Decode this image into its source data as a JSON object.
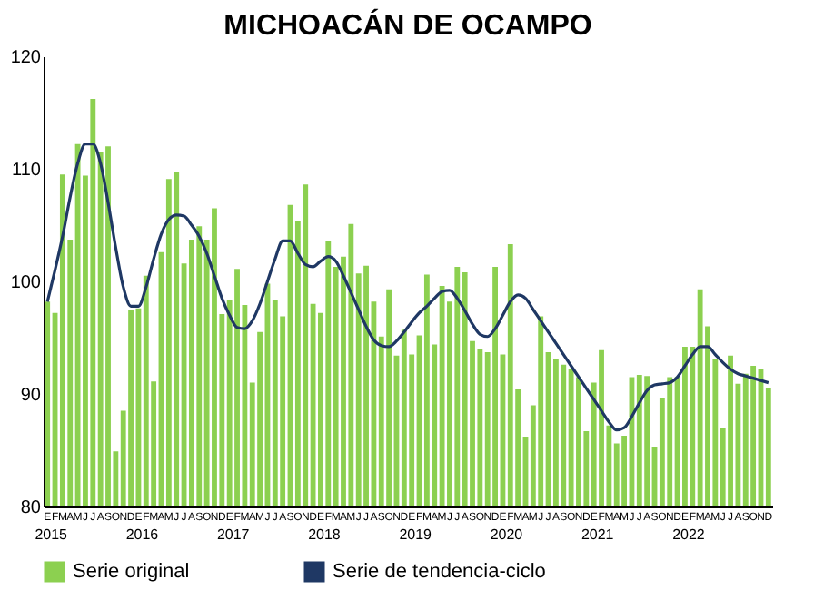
{
  "chart_data": {
    "type": "bar",
    "title": "MICHOACÁN DE OCAMPO",
    "categories": [
      "E",
      "F",
      "M",
      "A",
      "M",
      "J",
      "J",
      "A",
      "S",
      "O",
      "N",
      "D",
      "E",
      "F",
      "M",
      "A",
      "M",
      "J",
      "J",
      "A",
      "S",
      "O",
      "N",
      "D",
      "E",
      "F",
      "M",
      "A",
      "M",
      "J",
      "J",
      "A",
      "S",
      "O",
      "N",
      "D",
      "E",
      "F",
      "M",
      "A",
      "M",
      "J",
      "J",
      "A",
      "S",
      "O",
      "N",
      "D",
      "E",
      "F",
      "M",
      "A",
      "M",
      "J",
      "J",
      "A",
      "S",
      "O",
      "N",
      "D",
      "E",
      "F",
      "M",
      "A",
      "M",
      "J",
      "J",
      "A",
      "S",
      "O",
      "N",
      "D",
      "E",
      "F",
      "M",
      "A",
      "M",
      "J",
      "J",
      "A",
      "S",
      "O",
      "N",
      "D",
      "E",
      "F",
      "M",
      "A",
      "M",
      "J",
      "J",
      "A",
      "S",
      "O",
      "N",
      "D"
    ],
    "annotations": [
      "2015",
      "2016",
      "2017",
      "2018",
      "2019",
      "2020",
      "2021",
      "2022"
    ],
    "series": [
      {
        "name": "Serie original",
        "type": "bar",
        "color": "#8cd050",
        "values": [
          98.2,
          97.2,
          109.5,
          103.7,
          112.2,
          109.4,
          116.2,
          111.5,
          112.0,
          84.9,
          88.5,
          97.5,
          97.6,
          100.5,
          91.1,
          102.6,
          109.1,
          109.7,
          101.6,
          103.7,
          104.9,
          103.7,
          106.5,
          97.1,
          98.3,
          101.1,
          97.9,
          91.0,
          95.5,
          99.8,
          98.3,
          96.9,
          106.8,
          105.4,
          108.6,
          98.0,
          97.2,
          103.6,
          101.3,
          102.2,
          105.1,
          100.7,
          101.4,
          98.2,
          95.1,
          99.3,
          93.4,
          95.7,
          93.5,
          95.2,
          100.6,
          94.4,
          99.6,
          98.2,
          101.3,
          100.8,
          94.7,
          94.0,
          93.7,
          101.3,
          93.5,
          103.3,
          90.4,
          86.2,
          89.0,
          96.9,
          93.7,
          93.1,
          92.6,
          92.2,
          91.5,
          86.7,
          91.0,
          93.9,
          87.2,
          85.6,
          86.3,
          91.5,
          91.7,
          91.6,
          85.3,
          89.6,
          91.5,
          91.5,
          94.2,
          94.2,
          99.3,
          96.0,
          93.1,
          87.0,
          93.4,
          90.9,
          91.8,
          92.5,
          92.2,
          90.5
        ]
      },
      {
        "name": "Serie de tendencia-ciclo",
        "type": "line",
        "color": "#1f3864",
        "values": [
          98.2,
          101,
          104,
          107.5,
          110.5,
          112.2,
          112.2,
          110.5,
          107,
          103,
          99.5,
          97.8,
          97.8,
          99.5,
          102,
          104.2,
          105.5,
          105.9,
          105.8,
          105,
          104,
          102.5,
          100.5,
          98.5,
          97,
          95.9,
          95.8,
          96.5,
          98,
          100,
          102,
          103.6,
          103.6,
          102.5,
          101.5,
          101.3,
          101.8,
          102.2,
          101.8,
          100.5,
          99,
          97.5,
          96,
          94.8,
          94.3,
          94.2,
          94.7,
          95.5,
          96.4,
          97.2,
          97.8,
          98.5,
          99.1,
          99.2,
          98.5,
          97.4,
          96.2,
          95.3,
          95.1,
          95.8,
          97,
          98.2,
          98.8,
          98.5,
          97.5,
          96.5,
          95.5,
          94.5,
          93.5,
          92.5,
          91.5,
          90.5,
          89.5,
          88.5,
          87.5,
          86.8,
          87,
          88,
          89.2,
          90.3,
          90.8,
          90.9,
          91,
          91.5,
          92.5,
          93.5,
          94.2,
          94.2,
          93.5,
          92.8,
          92.2,
          91.8,
          91.6,
          91.4,
          91.2,
          91.0
        ]
      }
    ],
    "ylim": [
      80,
      120
    ],
    "yticks": [
      80,
      90,
      100,
      110,
      120
    ],
    "grid": false,
    "legend": "bottom"
  }
}
